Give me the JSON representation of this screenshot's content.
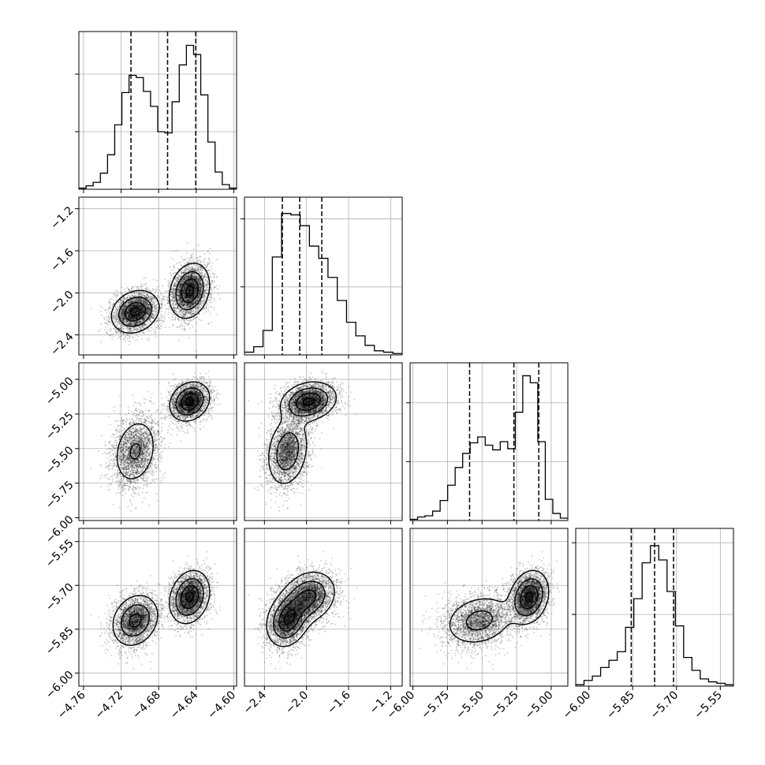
{
  "chart_data": {
    "type": "corner",
    "title": "",
    "params": [
      {
        "range": [
          -4.765,
          -4.597
        ],
        "ticks": [
          -4.76,
          -4.72,
          -4.68,
          -4.64,
          -4.6
        ],
        "tick_labels": [
          "−4.76",
          "−4.72",
          "−4.68",
          "−4.64",
          "−4.60"
        ],
        "quantiles": [
          -4.7095,
          -4.6705,
          -4.6405
        ],
        "hist": [
          0.01,
          0.03,
          0.06,
          0.14,
          0.3,
          0.56,
          0.84,
          0.99,
          0.97,
          0.85,
          0.72,
          0.5,
          0.49,
          0.76,
          1.08,
          1.25,
          1.17,
          0.82,
          0.41,
          0.15,
          0.04,
          0.01
        ],
        "hist_max": 1.37,
        "modes": [
          {
            "mu": -4.705,
            "sd": 0.0125,
            "w": 0.48
          },
          {
            "mu": -4.647,
            "sd": 0.0105,
            "w": 0.52
          }
        ]
      },
      {
        "range": [
          -2.59,
          -1.09
        ],
        "ticks": [
          -2.4,
          -2.0,
          -1.6,
          -1.2
        ],
        "tick_labels": [
          "−2.4",
          "−2.0",
          "−1.6",
          "−1.2"
        ],
        "quantiles": [
          -2.23,
          -2.065,
          -1.855
        ],
        "hist": [
          0.02,
          0.06,
          0.18,
          0.72,
          1.04,
          1.03,
          0.95,
          0.8,
          0.71,
          0.57,
          0.4,
          0.24,
          0.14,
          0.07,
          0.03,
          0.02,
          0.01
        ],
        "hist_max": 1.16,
        "modes": [
          {
            "mu": -2.18,
            "sd": 0.1,
            "w": 0.48
          },
          {
            "mu": -1.98,
            "sd": 0.13,
            "w": 0.52
          }
        ]
      },
      {
        "range": [
          -6.02,
          -4.88
        ],
        "ticks": [
          -6.0,
          -5.75,
          -5.5,
          -5.25,
          -5.0
        ],
        "tick_labels": [
          "−6.00",
          "−5.75",
          "−5.50",
          "−5.25",
          "−5.00"
        ],
        "quantiles": [
          -5.59,
          -5.27,
          -5.09
        ],
        "hist": [
          0.01,
          0.03,
          0.04,
          0.08,
          0.17,
          0.3,
          0.45,
          0.57,
          0.66,
          0.71,
          0.64,
          0.6,
          0.67,
          0.61,
          0.92,
          1.23,
          1.17,
          0.67,
          0.18,
          0.06,
          0.02
        ],
        "hist_max": 1.34,
        "modes": [
          {
            "mu": -5.52,
            "sd": 0.13,
            "w": 0.48
          },
          {
            "mu": -5.16,
            "sd": 0.07,
            "w": 0.52
          }
        ]
      },
      {
        "range": [
          -6.045,
          -5.505
        ],
        "ticks": [
          -6.0,
          -5.85,
          -5.7,
          -5.55
        ],
        "tick_labels": [
          "−6.00",
          "−5.85",
          "−5.70",
          "−5.55"
        ],
        "quantiles": [
          -5.855,
          -5.775,
          -5.71
        ],
        "hist": [
          0.01,
          0.04,
          0.07,
          0.13,
          0.18,
          0.24,
          0.41,
          0.61,
          0.86,
          0.98,
          0.88,
          0.66,
          0.42,
          0.2,
          0.11,
          0.05,
          0.03,
          0.02,
          0.01
        ],
        "hist_max": 1.1,
        "modes": [
          {
            "mu": -5.82,
            "sd": 0.045,
            "w": 0.48
          },
          {
            "mu": -5.74,
            "sd": 0.045,
            "w": 0.52
          }
        ]
      }
    ],
    "hist_yticks": [
      0.5,
      1.0
    ],
    "grid": true,
    "x_tick_rotation": -45,
    "y_tick_rotation": -45,
    "colors": {
      "line": "#000000",
      "grid": "#b0b0b0",
      "points": "#000000",
      "density_fill": "#000000"
    }
  }
}
